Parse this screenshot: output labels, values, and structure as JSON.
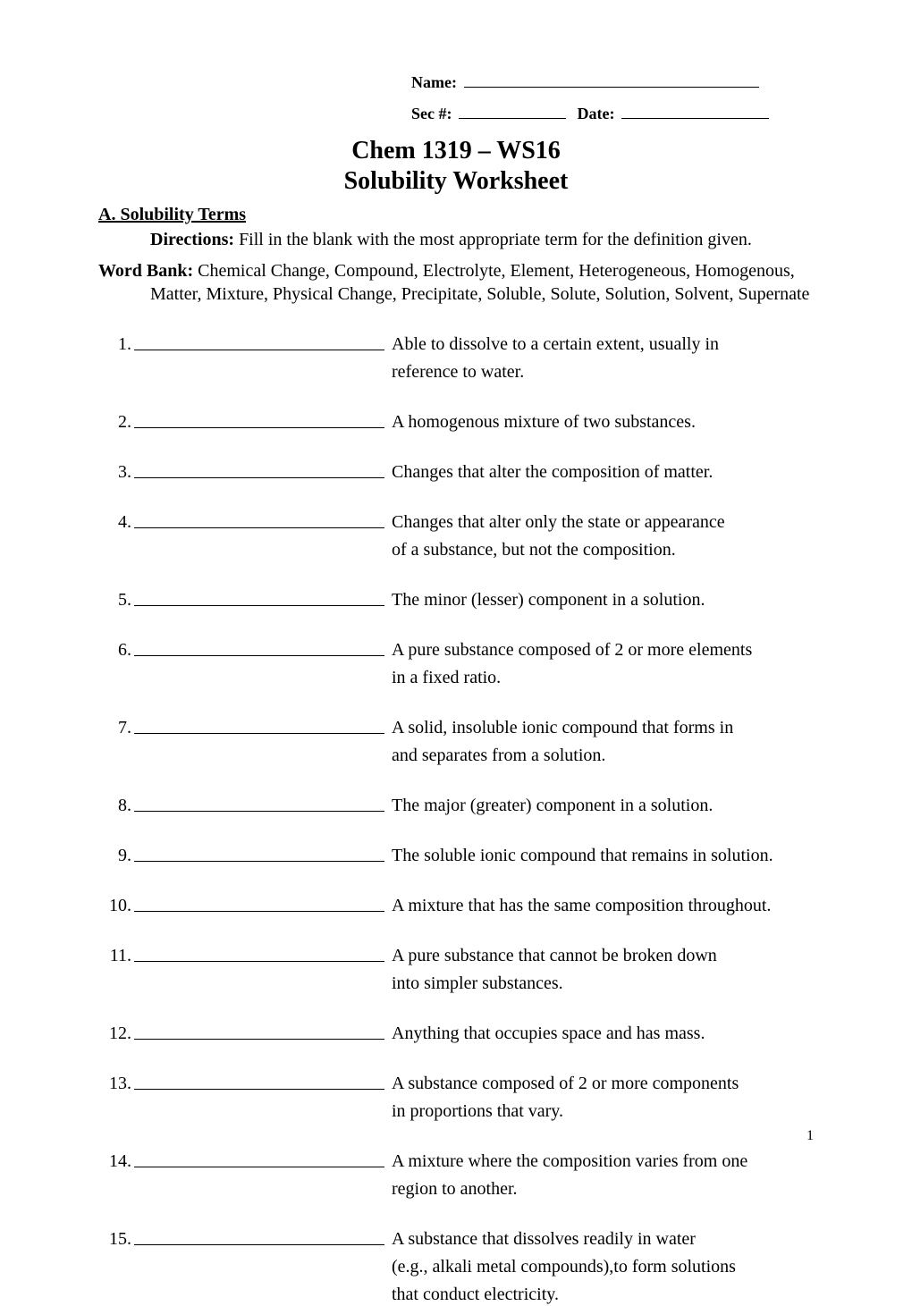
{
  "header": {
    "name_label": "Name:",
    "sec_label": "Sec #:",
    "date_label": "Date:"
  },
  "title_line1": "Chem 1319 – WS16",
  "title_line2": "Solubility Worksheet",
  "section_a": {
    "heading": "A.  Solubility Terms",
    "directions_label": "Directions:",
    "directions_text": "  Fill in the blank with the most appropriate term for the definition given.",
    "wordbank_label": "Word Bank:",
    "wordbank_text": "  Chemical Change, Compound, Electrolyte, Element, Heterogeneous, Homogenous, Matter, Mixture, Physical Change, Precipitate, Soluble, Solute, Solution, Solvent, Supernate"
  },
  "questions": [
    {
      "num": "1.",
      "def1": "Able to dissolve to a certain extent, usually in",
      "def2": "reference to water."
    },
    {
      "num": "2.",
      "def1": "A homogenous mixture of two substances.",
      "def2": ""
    },
    {
      "num": "3.",
      "def1": "Changes that alter the composition of matter.",
      "def2": ""
    },
    {
      "num": "4.",
      "def1": "Changes that alter only the state or appearance",
      "def2": "of a substance, but not the composition."
    },
    {
      "num": "5.",
      "def1": "The minor (lesser) component in a solution.",
      "def2": ""
    },
    {
      "num": "6.",
      "def1": "A pure substance composed of 2 or more elements",
      "def2": "in a fixed ratio."
    },
    {
      "num": "7.",
      "def1": "A solid, insoluble ionic compound that forms in",
      "def2": "and separates from a solution."
    },
    {
      "num": "8.",
      "def1": "The major (greater) component in a solution.",
      "def2": ""
    },
    {
      "num": "9.",
      "def1": "The soluble ionic compound that remains in solution.",
      "def2": ""
    },
    {
      "num": "10.",
      "def1": "A mixture that has the same composition throughout.",
      "def2": ""
    },
    {
      "num": "11.",
      "def1": "A pure substance that cannot be broken down",
      "def2": "into simpler substances."
    },
    {
      "num": "12.",
      "def1": "Anything that occupies space and has mass.",
      "def2": ""
    },
    {
      "num": "13.",
      "def1": "A substance composed of 2 or more components",
      "def2": "in proportions that vary."
    },
    {
      "num": "14.",
      "def1": "A mixture where the composition varies from one",
      "def2": "region to another."
    },
    {
      "num": "15.",
      "def1": "A substance that dissolves readily in water",
      "def2": "(e.g., alkali metal compounds),to form solutions",
      "def3": "that conduct electricity."
    }
  ],
  "page_number": "1"
}
